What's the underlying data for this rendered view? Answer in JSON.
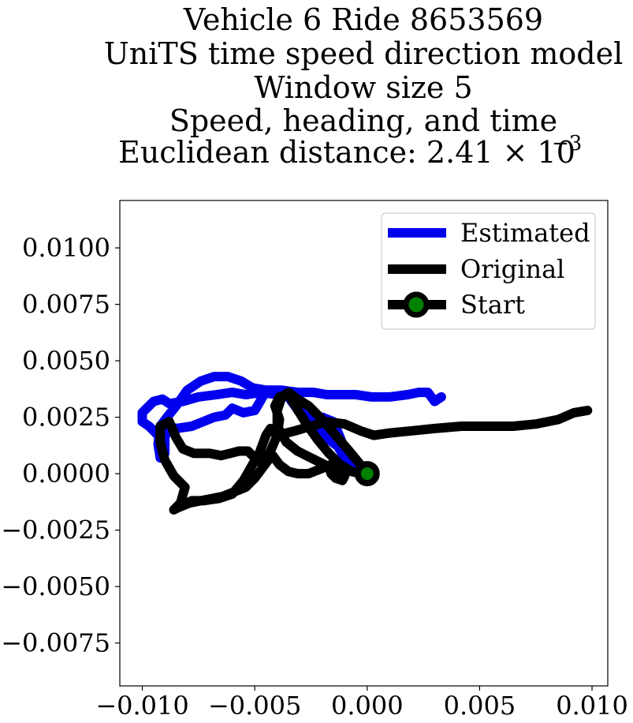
{
  "chart_data": {
    "type": "line",
    "title_lines": [
      "Vehicle 6 Ride 8653569",
      "UniTS time speed direction model",
      "Window size 5",
      "Speed, heading, and time",
      "Euclidean distance: 2.41 × 10"
    ],
    "title_exponent": "−3",
    "xlabel": "",
    "ylabel": "",
    "xlim": [
      -0.011,
      0.0107
    ],
    "ylim": [
      -0.0094,
      0.0121
    ],
    "xticks": [
      -0.01,
      -0.005,
      0.0,
      0.005,
      0.01
    ],
    "xtick_labels": [
      "−0.010",
      "−0.005",
      "0.000",
      "0.005",
      "0.010"
    ],
    "yticks": [
      0.01,
      0.0075,
      0.005,
      0.0025,
      0.0,
      -0.0025,
      -0.005,
      -0.0075
    ],
    "ytick_labels": [
      "0.0100",
      "0.0075",
      "0.0050",
      "0.0025",
      "0.0000",
      "−0.0025",
      "−0.0050",
      "−0.0075"
    ],
    "grid": false,
    "legend_position": "top-right",
    "legend": [
      "Estimated",
      "Original",
      "Start"
    ],
    "series": [
      {
        "name": "Estimated",
        "color": "#0000ee",
        "points": [
          [
            0.0033,
            0.0034
          ],
          [
            0.003,
            0.0032
          ],
          [
            0.0027,
            0.0036
          ],
          [
            0.0023,
            0.0036
          ],
          [
            0.0018,
            0.0035
          ],
          [
            0.001,
            0.0034
          ],
          [
            0.0002,
            0.0034
          ],
          [
            -0.0005,
            0.0035
          ],
          [
            -0.0012,
            0.0035
          ],
          [
            -0.0018,
            0.0035
          ],
          [
            -0.0024,
            0.0036
          ],
          [
            -0.0031,
            0.0036
          ],
          [
            -0.0038,
            0.0037
          ],
          [
            -0.0045,
            0.0037
          ],
          [
            -0.0051,
            0.0038
          ],
          [
            -0.0056,
            0.0041
          ],
          [
            -0.0062,
            0.0043
          ],
          [
            -0.0068,
            0.0043
          ],
          [
            -0.0074,
            0.0041
          ],
          [
            -0.008,
            0.0037
          ],
          [
            -0.0085,
            0.003
          ],
          [
            -0.0089,
            0.0025
          ],
          [
            -0.0092,
            0.0021
          ],
          [
            -0.0093,
            0.0013
          ],
          [
            -0.0092,
            0.0007
          ],
          [
            -0.009,
            0.0009
          ],
          [
            -0.009,
            0.0016
          ],
          [
            -0.0088,
            0.0021
          ],
          [
            -0.0085,
            0.002
          ],
          [
            -0.0078,
            0.0021
          ],
          [
            -0.0073,
            0.0023
          ],
          [
            -0.0068,
            0.0025
          ],
          [
            -0.0063,
            0.0026
          ],
          [
            -0.006,
            0.0029
          ],
          [
            -0.0055,
            0.0027
          ],
          [
            -0.005,
            0.0028
          ],
          [
            -0.0047,
            0.0033
          ],
          [
            -0.0045,
            0.0037
          ],
          [
            -0.004,
            0.0036
          ],
          [
            -0.0035,
            0.0034
          ],
          [
            -0.0029,
            0.0027
          ],
          [
            -0.0023,
            0.0021
          ],
          [
            -0.0018,
            0.0016
          ],
          [
            -0.0013,
            0.0012
          ],
          [
            -0.001,
            0.0007
          ],
          [
            -0.0008,
            0.0003
          ],
          [
            -0.0005,
            0.0004
          ],
          [
            -0.0009,
            0.0008
          ],
          [
            -0.0012,
            0.0016
          ],
          [
            -0.0015,
            0.0023
          ],
          [
            -0.002,
            0.0025
          ],
          [
            -0.0025,
            0.0024
          ],
          [
            -0.003,
            0.0027
          ],
          [
            -0.0035,
            0.0034
          ],
          [
            -0.004,
            0.0035
          ],
          [
            -0.0047,
            0.0036
          ],
          [
            -0.0054,
            0.0035
          ],
          [
            -0.006,
            0.0036
          ],
          [
            -0.0067,
            0.0035
          ],
          [
            -0.0075,
            0.0034
          ],
          [
            -0.0082,
            0.0032
          ],
          [
            -0.0088,
            0.0031
          ],
          [
            -0.0091,
            0.0033
          ],
          [
            -0.0095,
            0.0032
          ],
          [
            -0.01,
            0.0027
          ],
          [
            -0.01,
            0.0023
          ],
          [
            -0.0097,
            0.0021
          ],
          [
            -0.0093,
            0.0017
          ],
          [
            -0.0092,
            0.0013
          ]
        ]
      },
      {
        "name": "Original",
        "color": "#000000",
        "points": [
          [
            0.0098,
            0.0028
          ],
          [
            0.0092,
            0.0027
          ],
          [
            0.0085,
            0.0024
          ],
          [
            0.0075,
            0.0022
          ],
          [
            0.0065,
            0.0021
          ],
          [
            0.0055,
            0.0021
          ],
          [
            0.0042,
            0.0021
          ],
          [
            0.003,
            0.002
          ],
          [
            0.002,
            0.0019
          ],
          [
            0.001,
            0.0018
          ],
          [
            0.0003,
            0.0017
          ],
          [
            -0.0003,
            0.0019
          ],
          [
            -0.001,
            0.0022
          ],
          [
            -0.0018,
            0.0023
          ],
          [
            -0.0025,
            0.0021
          ],
          [
            -0.0032,
            0.0019
          ],
          [
            -0.004,
            0.0017
          ],
          [
            -0.0043,
            0.002
          ],
          [
            -0.0045,
            0.0017
          ],
          [
            -0.0048,
            0.0009
          ],
          [
            -0.0051,
            0.0004
          ],
          [
            -0.0055,
            -0.0003
          ],
          [
            -0.006,
            -0.0009
          ],
          [
            -0.0066,
            -0.0011
          ],
          [
            -0.0073,
            -0.0012
          ],
          [
            -0.0078,
            -0.0012
          ],
          [
            -0.0082,
            -0.0014
          ],
          [
            -0.0086,
            -0.0016
          ],
          [
            -0.0083,
            -0.0013
          ],
          [
            -0.0081,
            -0.0006
          ],
          [
            -0.0086,
            -0.0001
          ],
          [
            -0.009,
            0.0006
          ],
          [
            -0.0092,
            0.0014
          ],
          [
            -0.0092,
            0.0021
          ],
          [
            -0.0088,
            0.0023
          ],
          [
            -0.0085,
            0.0016
          ],
          [
            -0.0082,
            0.0011
          ],
          [
            -0.0077,
            0.0009
          ],
          [
            -0.007,
            0.0009
          ],
          [
            -0.0065,
            0.0008
          ],
          [
            -0.0061,
            0.0009
          ],
          [
            -0.0057,
            0.001
          ],
          [
            -0.0053,
            0.001
          ],
          [
            -0.005,
            0.0007
          ],
          [
            -0.0046,
            0.0004
          ],
          [
            -0.0043,
            0.001
          ],
          [
            -0.004,
            0.0017
          ],
          [
            -0.0039,
            0.0024
          ],
          [
            -0.0041,
            0.003
          ],
          [
            -0.0039,
            0.0034
          ],
          [
            -0.0035,
            0.0035
          ],
          [
            -0.0032,
            0.003
          ],
          [
            -0.0027,
            0.0022
          ],
          [
            -0.0022,
            0.0015
          ],
          [
            -0.0017,
            0.0009
          ],
          [
            -0.0012,
            0.0004
          ],
          [
            -0.0007,
            0.0001
          ],
          [
            -0.0003,
            0.0
          ],
          [
            0.0,
            0.0
          ],
          [
            -0.0003,
            0.0004
          ],
          [
            -0.0008,
            0.001
          ],
          [
            -0.0014,
            0.0017
          ],
          [
            -0.002,
            0.0024
          ],
          [
            -0.0026,
            0.003
          ],
          [
            -0.0031,
            0.0033
          ],
          [
            -0.0035,
            0.0036
          ],
          [
            -0.0038,
            0.0034
          ],
          [
            -0.004,
            0.0028
          ],
          [
            -0.004,
            0.0021
          ],
          [
            -0.0036,
            0.0014
          ],
          [
            -0.0031,
            0.001
          ],
          [
            -0.0025,
            0.0007
          ],
          [
            -0.0021,
            0.0005
          ],
          [
            -0.0017,
            0.0003
          ],
          [
            -0.0016,
            0.0
          ],
          [
            -0.0014,
            -0.0002
          ],
          [
            -0.0011,
            -0.0003
          ],
          [
            -0.001,
            -0.0001
          ],
          [
            -0.0013,
            0.0002
          ],
          [
            -0.0016,
            0.0004
          ],
          [
            -0.0021,
            0.0002
          ],
          [
            -0.0026,
            0.0
          ],
          [
            -0.0031,
            0.0
          ],
          [
            -0.0035,
            0.0001
          ],
          [
            -0.0039,
            0.0004
          ],
          [
            -0.0042,
            0.0008
          ],
          [
            -0.0044,
            0.0006
          ],
          [
            -0.0047,
            0.0002
          ],
          [
            -0.005,
            -0.0002
          ],
          [
            -0.0054,
            -0.0006
          ],
          [
            -0.0059,
            -0.0008
          ],
          [
            -0.0064,
            -0.001
          ],
          [
            -0.0069,
            -0.0011
          ],
          [
            -0.0074,
            -0.0012
          ],
          [
            -0.0079,
            -0.0013
          ],
          [
            -0.0084,
            -0.0015
          ]
        ]
      }
    ],
    "start_marker": {
      "name": "Start",
      "x": 0.0,
      "y": 0.0,
      "edge_color": "#000000",
      "face_color": "#008000"
    }
  }
}
